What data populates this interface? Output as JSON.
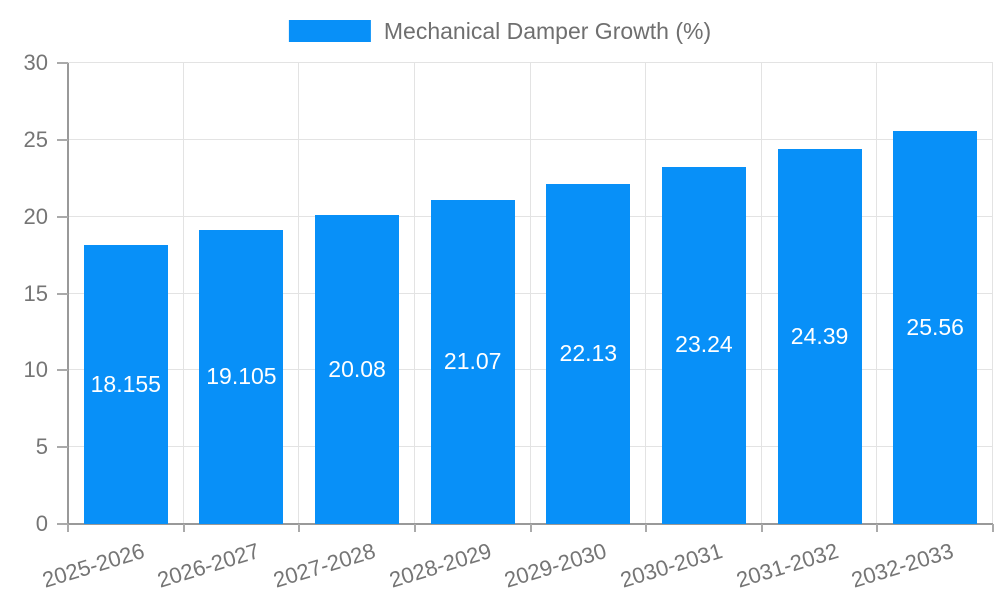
{
  "chart_data": {
    "type": "bar",
    "title": "Mechanical Damper Growth (%)",
    "legend": {
      "position": "top",
      "entries": [
        "Mechanical Damper Growth (%)"
      ]
    },
    "categories": [
      "2025-2026",
      "2026-2027",
      "2027-2028",
      "2028-2029",
      "2029-2030",
      "2030-2031",
      "2031-2032",
      "2032-2033"
    ],
    "values": [
      18.155,
      19.105,
      20.08,
      21.07,
      22.13,
      23.24,
      24.39,
      25.56
    ],
    "value_labels": [
      "18.155",
      "19.105",
      "20.08",
      "21.07",
      "22.13",
      "23.24",
      "24.39",
      "25.56"
    ],
    "xlabel": "",
    "ylabel": "",
    "ylim": [
      0,
      30
    ],
    "yticks": [
      0,
      5,
      10,
      15,
      20,
      25,
      30
    ],
    "grid": true,
    "x_label_rotation_deg": -17
  },
  "colors": {
    "bar": "#0890F8",
    "axis": "#999999",
    "tick": "#aaaaaa",
    "grid": "#e3e3e3",
    "axis_label": "#757575",
    "value_label": "#ffffff",
    "legend_text": "#6f6f6f",
    "background": "#ffffff"
  }
}
